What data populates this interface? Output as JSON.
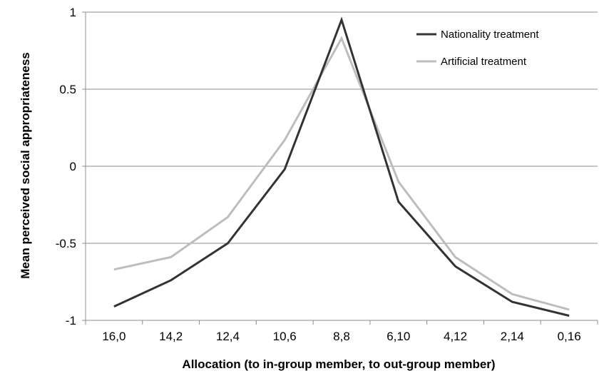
{
  "chart_data": {
    "type": "line",
    "title": "",
    "xlabel": "Allocation (to in-group member, to out-group member)",
    "ylabel": "Mean perceived social appropriateness",
    "categories": [
      "16,0",
      "14,2",
      "12,4",
      "10,6",
      "8,8",
      "6,10",
      "4,12",
      "2,14",
      "0,16"
    ],
    "ylim": [
      -1,
      1
    ],
    "yticks": [
      1,
      0.5,
      0,
      -0.5,
      -1
    ],
    "ytick_labels": [
      "1",
      "0.5",
      "0",
      "-0.5",
      "-1"
    ],
    "grid": true,
    "legend_position": "top-right",
    "series": [
      {
        "name": "Nationality treatment",
        "color": "#333333",
        "values": [
          -0.91,
          -0.74,
          -0.5,
          -0.02,
          0.95,
          -0.23,
          -0.65,
          -0.88,
          -0.97
        ]
      },
      {
        "name": "Artificial treatment",
        "color": "#bdbdbd",
        "values": [
          -0.67,
          -0.59,
          -0.33,
          0.17,
          0.83,
          -0.1,
          -0.59,
          -0.83,
          -0.93
        ]
      }
    ]
  }
}
